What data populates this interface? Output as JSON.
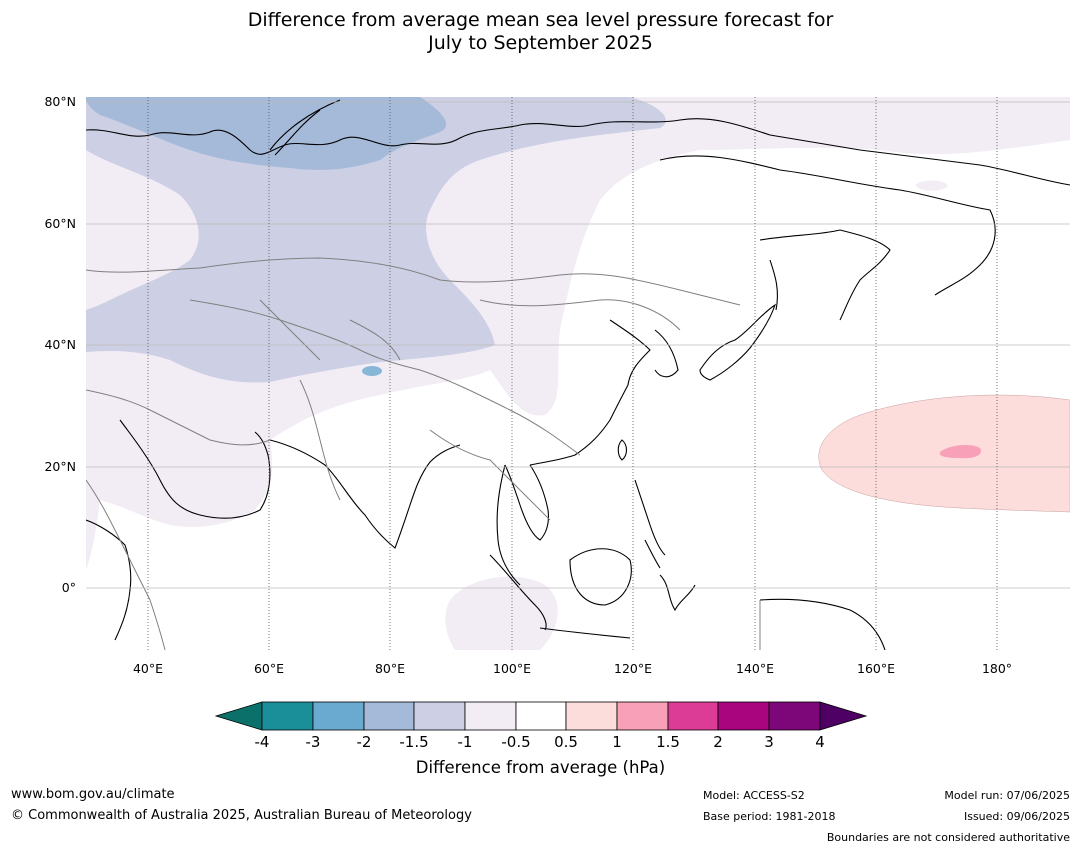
{
  "title": {
    "line1": "Difference from average mean sea level pressure forecast for",
    "line2": "July to September 2025"
  },
  "map": {
    "lat_labels": [
      "80°N",
      "60°N",
      "40°N",
      "20°N",
      "0°"
    ],
    "lon_labels": [
      "40°E",
      "60°E",
      "80°E",
      "100°E",
      "120°E",
      "140°E",
      "160°E",
      "180°"
    ],
    "colors": {
      "land_outline": "#000000",
      "borders": "#808080",
      "gridline": "#bbbbbb"
    }
  },
  "colorbar": {
    "title": "Difference from average (hPa)",
    "tick_labels": [
      "-4",
      "-3",
      "-2",
      "-1.5",
      "-1",
      "-0.5",
      "0.5",
      "1",
      "1.5",
      "2",
      "3",
      "4"
    ],
    "colors": [
      "#0b7069",
      "#1b8f99",
      "#6aaad0",
      "#a5b9d8",
      "#cdcfe4",
      "#f2ecf5",
      "#ffffff",
      "#fddcdc",
      "#f8a0b8",
      "#dc3c95",
      "#a8057e",
      "#7d0679",
      "#4e0065"
    ]
  },
  "footer": {
    "url": "www.bom.gov.au/climate",
    "copyright": "© Commonwealth of Australia 2025, Australian Bureau of Meteorology",
    "model": "Model: ACCESS-S2",
    "base_period": "Base period: 1981-2018",
    "model_run": "Model run: 07/06/2025",
    "issued": "Issued: 09/06/2025",
    "disclaimer": "Boundaries are not considered authoritative"
  }
}
